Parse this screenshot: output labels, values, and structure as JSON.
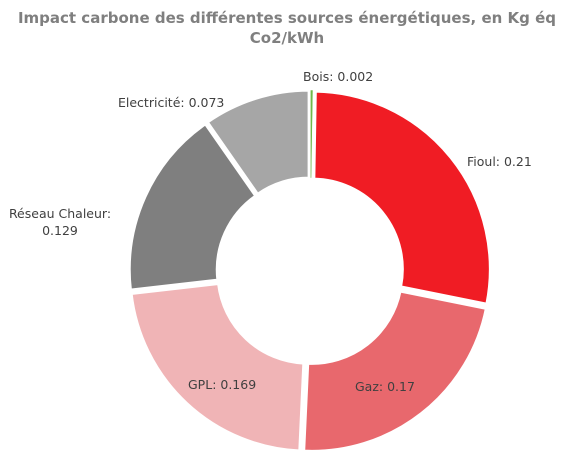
{
  "chart_data": {
    "type": "pie",
    "title": "Impact carbone des différentes sources énergétiques, en Kg éq Co2/kWh",
    "values": [
      0.002,
      0.21,
      0.17,
      0.169,
      0.129,
      0.073
    ],
    "value_labels": [
      "Bois: 0.002",
      "Fioul: 0.21",
      "Gaz: 0.17",
      "GPL: 0.169",
      "Réseau Chaleur: 0.129",
      "Electricité: 0.073"
    ],
    "colors": [
      "#70b84a",
      "#f01c24",
      "#e8686d",
      "#f0b4b6",
      "#7f7f7f",
      "#a6a6a6"
    ]
  }
}
